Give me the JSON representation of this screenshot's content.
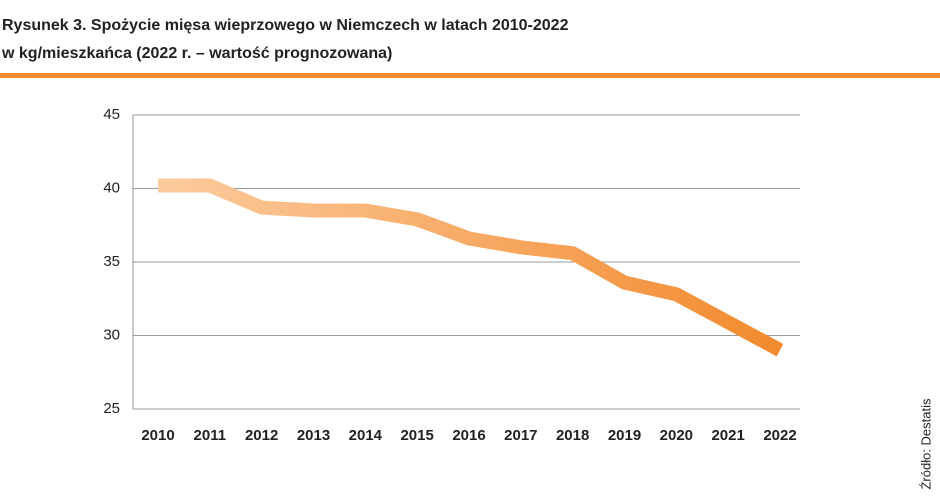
{
  "chart_data": {
    "type": "line",
    "title": "Rysunek 3. Spożycie mięsa wieprzowego w Niemczech w latach 2010-2022",
    "subtitle": "w kg/mieszkańca (2022 r. – wartość prognozowana)",
    "source": "Źródło: Destatis",
    "categories": [
      "2010",
      "2011",
      "2012",
      "2013",
      "2014",
      "2015",
      "2016",
      "2017",
      "2018",
      "2019",
      "2020",
      "2021",
      "2022"
    ],
    "values": [
      40.2,
      40.2,
      38.7,
      38.5,
      38.5,
      37.9,
      36.6,
      36.0,
      35.6,
      33.6,
      32.8,
      30.9,
      29.0
    ],
    "color": "#f28a2e",
    "ylim": [
      25,
      45
    ],
    "yticks": [
      25,
      30,
      35,
      40,
      45
    ],
    "grid": true
  }
}
